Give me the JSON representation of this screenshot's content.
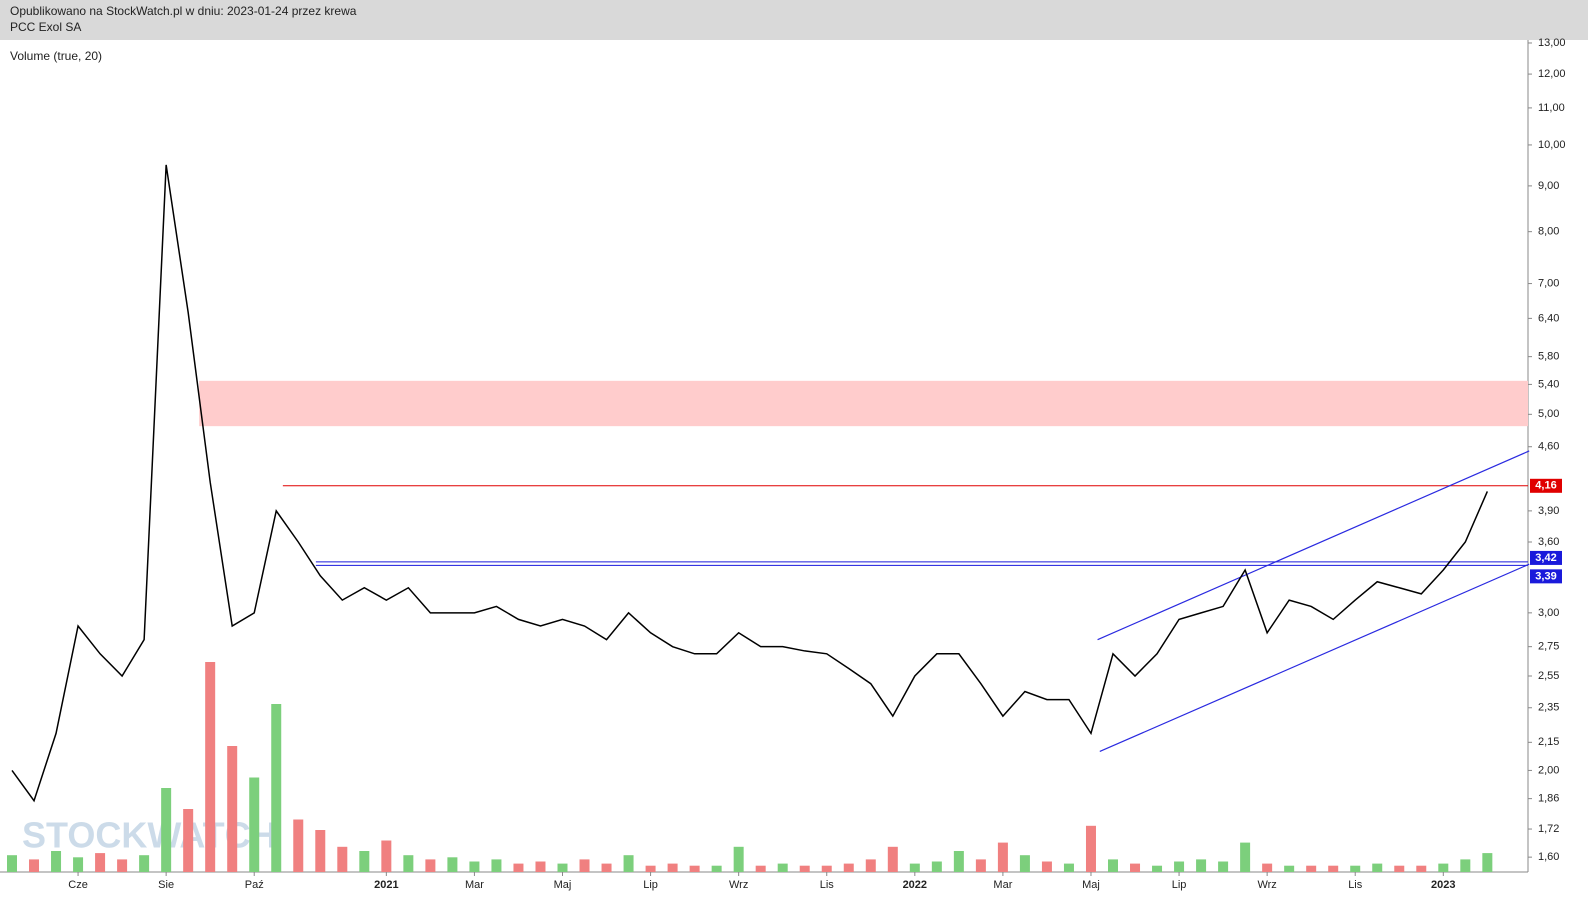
{
  "header": {
    "published": "Opublikowano na StockWatch.pl w dniu: 2023-01-24 przez krewa",
    "instrument": "PCC Exol SA"
  },
  "chart_data": {
    "type": "line",
    "indicator": "Volume (true, 20)",
    "watermark": "STOCKWATCH",
    "log_scale": true,
    "color": "#000000",
    "up_color": "#7ccf7c",
    "down_color": "#f08080",
    "categories": [
      null,
      null,
      null,
      "Cze",
      null,
      null,
      null,
      "Sie",
      null,
      null,
      null,
      "Paź",
      null,
      null,
      null,
      null,
      null,
      "2021",
      null,
      null,
      null,
      "Mar",
      null,
      null,
      null,
      "Maj",
      null,
      null,
      null,
      "Lip",
      null,
      null,
      null,
      "Wrz",
      null,
      null,
      null,
      "Lis",
      null,
      null,
      null,
      "2022",
      null,
      null,
      null,
      "Mar",
      null,
      null,
      null,
      "Maj",
      null,
      null,
      null,
      "Lip",
      null,
      null,
      null,
      "Wrz",
      null,
      null,
      null,
      "Lis",
      null,
      null,
      null,
      "2023",
      null,
      null
    ],
    "values": [
      2.0,
      1.85,
      2.2,
      2.9,
      2.7,
      2.55,
      2.8,
      9.5,
      6.5,
      4.2,
      2.9,
      3.0,
      3.9,
      3.6,
      3.3,
      3.1,
      3.2,
      3.1,
      3.2,
      3.0,
      3.0,
      3.0,
      3.05,
      2.95,
      2.9,
      2.95,
      2.9,
      2.8,
      3.0,
      2.85,
      2.75,
      2.7,
      2.7,
      2.85,
      2.75,
      2.75,
      2.72,
      2.7,
      2.6,
      2.5,
      2.3,
      2.55,
      2.7,
      2.7,
      2.5,
      2.3,
      2.45,
      2.4,
      2.4,
      2.2,
      2.7,
      2.55,
      2.7,
      2.95,
      3.0,
      3.05,
      3.35,
      2.85,
      3.1,
      3.05,
      2.95,
      3.1,
      3.25,
      3.2,
      3.15,
      3.35,
      3.6,
      4.1
    ],
    "volume": [
      8,
      6,
      10,
      7,
      9,
      6,
      8,
      40,
      30,
      100,
      60,
      45,
      80,
      25,
      20,
      12,
      10,
      15,
      8,
      6,
      7,
      5,
      6,
      4,
      5,
      4,
      6,
      4,
      8,
      3,
      4,
      3,
      3,
      12,
      3,
      4,
      3,
      3,
      4,
      6,
      12,
      4,
      5,
      10,
      6,
      14,
      8,
      5,
      4,
      22,
      6,
      4,
      3,
      5,
      6,
      5,
      14,
      4,
      3,
      3,
      3,
      3,
      4,
      3,
      3,
      4,
      6,
      9
    ],
    "vlim": [
      0,
      100
    ],
    "ylim": [
      1.54,
      13.1
    ],
    "yticks": [
      {
        "value": 13,
        "label": "13,00"
      },
      {
        "value": 12,
        "label": "12,00"
      },
      {
        "value": 11,
        "label": "11,00"
      },
      {
        "value": 10,
        "label": "10,00"
      },
      {
        "value": 9,
        "label": "9,00"
      },
      {
        "value": 8,
        "label": "8,00"
      },
      {
        "value": 7,
        "label": "7,00"
      },
      {
        "value": 6.4,
        "label": "6,40"
      },
      {
        "value": 5.8,
        "label": "5,80"
      },
      {
        "value": 5.4,
        "label": "5,40"
      },
      {
        "value": 5,
        "label": "5,00"
      },
      {
        "value": 4.6,
        "label": "4,60"
      },
      {
        "value": 3.9,
        "label": "3,90"
      },
      {
        "value": 3.6,
        "label": "3,60"
      },
      {
        "value": 3,
        "label": "3,00"
      },
      {
        "value": 2.75,
        "label": "2,75"
      },
      {
        "value": 2.55,
        "label": "2,55"
      },
      {
        "value": 2.35,
        "label": "2,35"
      },
      {
        "value": 2.15,
        "label": "2,15"
      },
      {
        "value": 2,
        "label": "2,00"
      },
      {
        "value": 1.86,
        "label": "1,86"
      },
      {
        "value": 1.72,
        "label": "1,72"
      },
      {
        "value": 1.6,
        "label": "1,60"
      }
    ],
    "zone": {
      "from": 4.85,
      "to": 5.45,
      "start": 8.5,
      "color": "#ffcccc"
    },
    "levels": [
      {
        "value": 4.16,
        "label": "4,16",
        "color": "#e00000",
        "start": 12.3
      },
      {
        "value": 3.42,
        "label": "3,42",
        "color": "#1a1adb",
        "start": 13.8
      },
      {
        "value": 3.39,
        "label": "3,39",
        "color": "#1a1adb",
        "start": 13.8
      }
    ],
    "channel": [
      {
        "x": [
          49.3,
          68.9
        ],
        "y": [
          2.8,
          4.55
        ]
      },
      {
        "x": [
          49.4,
          68.9
        ],
        "y": [
          2.1,
          3.4
        ]
      }
    ],
    "channel_color": "#2a2ae0"
  }
}
